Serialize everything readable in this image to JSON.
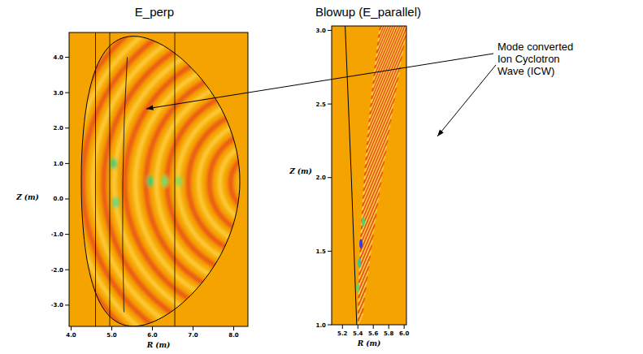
{
  "chart_data": [
    {
      "type": "heatmap",
      "title": "E_perp",
      "x_label": "R (m)",
      "y_label": "Z (m)",
      "xlim": [
        3.95,
        8.35
      ],
      "ylim": [
        -3.6,
        4.7
      ],
      "xticks": [
        {
          "value": 4,
          "label": "4.0"
        },
        {
          "value": 5,
          "label": "5.0"
        },
        {
          "value": 6,
          "label": "6.0"
        },
        {
          "value": 7,
          "label": "7.0"
        },
        {
          "value": 8,
          "label": "8.0"
        }
      ],
      "yticks": [
        {
          "value": -3,
          "label": "-3.0"
        },
        {
          "value": -2,
          "label": "-2.0"
        },
        {
          "value": -1,
          "label": "-1.0"
        },
        {
          "value": 0,
          "label": "0.0"
        },
        {
          "value": 1,
          "label": "1.0"
        },
        {
          "value": 2,
          "label": "2.0"
        },
        {
          "value": 3,
          "label": "3.0"
        },
        {
          "value": 4,
          "label": "4.0"
        }
      ]
    },
    {
      "type": "heatmap",
      "title": "Blowup (E_parallel)",
      "x_label": "R (m)",
      "y_label": "Z (m)",
      "xlim": [
        5.06,
        6.03
      ],
      "ylim": [
        1.0,
        3.03
      ],
      "xticks": [
        {
          "value": 5.2,
          "label": "5.2"
        },
        {
          "value": 5.4,
          "label": "5.4"
        },
        {
          "value": 5.6,
          "label": "5.6"
        },
        {
          "value": 5.8,
          "label": "5.8"
        },
        {
          "value": 6,
          "label": "6.0"
        }
      ],
      "yticks": [
        {
          "value": 1,
          "label": "1.0"
        },
        {
          "value": 1.5,
          "label": "1.5"
        },
        {
          "value": 2,
          "label": "2.0"
        },
        {
          "value": 2.5,
          "label": "2.5"
        },
        {
          "value": 3,
          "label": "3.0"
        }
      ],
      "annotations": [
        {
          "text": "Mode converted Ion Cyclotron Wave (ICW)"
        }
      ]
    }
  ]
}
